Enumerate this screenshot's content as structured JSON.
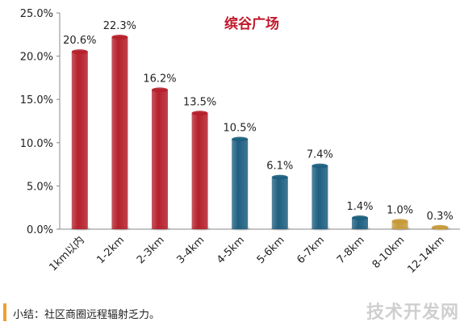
{
  "chart_data": {
    "type": "bar",
    "title": "缤谷广场",
    "categories": [
      "1km以内",
      "1-2km",
      "2-3km",
      "3-4km",
      "4-5km",
      "5-6km",
      "6-7km",
      "7-8km",
      "8-10km",
      "12-14km"
    ],
    "values": [
      20.6,
      22.3,
      16.2,
      13.5,
      10.5,
      6.1,
      7.4,
      1.4,
      1.0,
      0.3
    ],
    "data_labels": [
      "20.6%",
      "22.3%",
      "16.2%",
      "13.5%",
      "10.5%",
      "6.1%",
      "7.4%",
      "1.4%",
      "1.0%",
      "0.3%"
    ],
    "bar_colors": [
      "#b5202b",
      "#b5202b",
      "#b5202b",
      "#b5202b",
      "#1e5f80",
      "#1e5f80",
      "#1e5f80",
      "#1e5f80",
      "#c59a3a",
      "#c59a3a"
    ],
    "yticks": [
      "0.0%",
      "5.0%",
      "10.0%",
      "15.0%",
      "20.0%",
      "25.0%"
    ],
    "ylim": [
      0,
      25
    ],
    "xlabel": "",
    "ylabel": "",
    "grid": false,
    "title_color": "#c0172a"
  },
  "summary": {
    "text": "小结：社区商圈远程辐射乏力。",
    "accent_color": "#f0a030"
  },
  "watermark": "技术开发网"
}
